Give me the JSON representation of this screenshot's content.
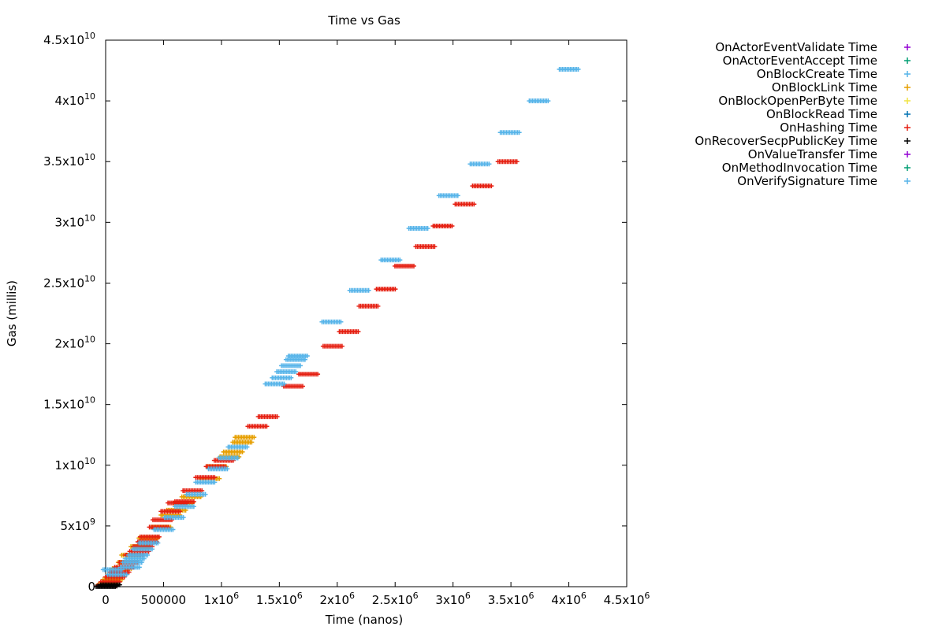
{
  "chart_data": {
    "type": "scatter",
    "title": "Time vs Gas",
    "xlabel": "Time (nanos)",
    "ylabel": "Gas (millis)",
    "xlim": [
      0,
      4500000
    ],
    "ylim": [
      0,
      45000000000
    ],
    "grid": false,
    "legend_position": "outside-right",
    "x_ticks": [
      {
        "value": 0,
        "label": "0"
      },
      {
        "value": 500000,
        "label": "500000"
      },
      {
        "value": 1000000,
        "mantissa": "1x10",
        "exp": "6"
      },
      {
        "value": 1500000,
        "mantissa": "1.5x10",
        "exp": "6"
      },
      {
        "value": 2000000,
        "mantissa": "2x10",
        "exp": "6"
      },
      {
        "value": 2500000,
        "mantissa": "2.5x10",
        "exp": "6"
      },
      {
        "value": 3000000,
        "mantissa": "3x10",
        "exp": "6"
      },
      {
        "value": 3500000,
        "mantissa": "3.5x10",
        "exp": "6"
      },
      {
        "value": 4000000,
        "mantissa": "4x10",
        "exp": "6"
      },
      {
        "value": 4500000,
        "mantissa": "4.5x10",
        "exp": "6"
      }
    ],
    "y_ticks": [
      {
        "value": 0,
        "label": "0"
      },
      {
        "value": 5000000000,
        "mantissa": "5x10",
        "exp": "9"
      },
      {
        "value": 10000000000,
        "mantissa": "1x10",
        "exp": "10"
      },
      {
        "value": 15000000000,
        "mantissa": "1.5x10",
        "exp": "10"
      },
      {
        "value": 20000000000,
        "mantissa": "2x10",
        "exp": "10"
      },
      {
        "value": 25000000000,
        "mantissa": "2.5x10",
        "exp": "10"
      },
      {
        "value": 30000000000,
        "mantissa": "3x10",
        "exp": "10"
      },
      {
        "value": 35000000000,
        "mantissa": "3.5x10",
        "exp": "10"
      },
      {
        "value": 40000000000,
        "mantissa": "4x10",
        "exp": "10"
      },
      {
        "value": 45000000000,
        "mantissa": "4.5x10",
        "exp": "10"
      }
    ],
    "series": [
      {
        "name": "OnActorEventValidate Time",
        "color": "#9400d3",
        "points": []
      },
      {
        "name": "OnActorEventAccept Time",
        "color": "#009e73",
        "points": []
      },
      {
        "name": "OnBlockCreate Time",
        "color": "#56b4e9",
        "points": []
      },
      {
        "name": "OnBlockLink Time",
        "color": "#e69f00",
        "points": [
          [
            20000,
            200000000
          ],
          [
            60000,
            600000000
          ],
          [
            100000,
            1000000000
          ],
          [
            140000,
            1500000000
          ],
          [
            190000,
            2000000000
          ],
          [
            220000,
            2600000000
          ],
          [
            300000,
            3300000000
          ],
          [
            370000,
            4000000000
          ],
          [
            480000,
            4900000000
          ],
          [
            560000,
            5900000000
          ],
          [
            610000,
            6300000000
          ],
          [
            670000,
            6900000000
          ],
          [
            740000,
            7400000000
          ],
          [
            900000,
            8900000000
          ],
          [
            960000,
            9900000000
          ],
          [
            1070000,
            10700000000
          ],
          [
            1100000,
            11100000000
          ],
          [
            1180000,
            11900000000
          ],
          [
            1200000,
            12300000000
          ]
        ]
      },
      {
        "name": "OnBlockOpenPerByte Time",
        "color": "#f0e442",
        "points": []
      },
      {
        "name": "OnBlockRead Time",
        "color": "#0072b2",
        "points": []
      },
      {
        "name": "OnHashing Time",
        "color": "#e51e10",
        "points": [
          [
            10000,
            100000000
          ],
          [
            40000,
            400000000
          ],
          [
            80000,
            800000000
          ],
          [
            120000,
            1200000000
          ],
          [
            160000,
            1600000000
          ],
          [
            200000,
            2000000000
          ],
          [
            250000,
            2600000000
          ],
          [
            290000,
            2900000000
          ],
          [
            320000,
            3300000000
          ],
          [
            360000,
            3700000000
          ],
          [
            380000,
            4100000000
          ],
          [
            460000,
            4900000000
          ],
          [
            490000,
            5500000000
          ],
          [
            560000,
            6200000000
          ],
          [
            620000,
            6900000000
          ],
          [
            680000,
            7000000000
          ],
          [
            750000,
            7900000000
          ],
          [
            860000,
            9000000000
          ],
          [
            950000,
            9900000000
          ],
          [
            1020000,
            10400000000
          ],
          [
            1310000,
            13200000000
          ],
          [
            1400000,
            14000000000
          ],
          [
            1620000,
            16500000000
          ],
          [
            1750000,
            17500000000
          ],
          [
            1960000,
            19800000000
          ],
          [
            2100000,
            21000000000
          ],
          [
            2270000,
            23100000000
          ],
          [
            2420000,
            24500000000
          ],
          [
            2580000,
            26400000000
          ],
          [
            2760000,
            28000000000
          ],
          [
            2910000,
            29700000000
          ],
          [
            3100000,
            31500000000
          ],
          [
            3250000,
            33000000000
          ],
          [
            3470000,
            35000000000
          ]
        ]
      },
      {
        "name": "OnRecoverSecpPublicKey Time",
        "color": "#000000",
        "points": [
          [
            0,
            0
          ],
          [
            15000,
            50000000
          ],
          [
            40000,
            150000000
          ]
        ]
      },
      {
        "name": "OnValueTransfer Time",
        "color": "#9400d3",
        "points": []
      },
      {
        "name": "OnMethodInvocation Time",
        "color": "#009e73",
        "points": []
      },
      {
        "name": "OnVerifySignature Time",
        "color": "#56b4e9",
        "points": [
          [
            60000,
            1400000000
          ],
          [
            100000,
            1000000000
          ],
          [
            210000,
            1600000000
          ],
          [
            230000,
            2000000000
          ],
          [
            250000,
            2300000000
          ],
          [
            280000,
            2600000000
          ],
          [
            320000,
            3100000000
          ],
          [
            370000,
            3600000000
          ],
          [
            500000,
            4700000000
          ],
          [
            590000,
            5700000000
          ],
          [
            680000,
            6600000000
          ],
          [
            780000,
            7600000000
          ],
          [
            860000,
            8600000000
          ],
          [
            970000,
            9700000000
          ],
          [
            1060000,
            10600000000
          ],
          [
            1140000,
            11500000000
          ],
          [
            1460000,
            16700000000
          ],
          [
            1520000,
            17200000000
          ],
          [
            1560000,
            17700000000
          ],
          [
            1600000,
            18200000000
          ],
          [
            1640000,
            18700000000
          ],
          [
            1660000,
            19000000000
          ],
          [
            1950000,
            21800000000
          ],
          [
            2190000,
            24400000000
          ],
          [
            2460000,
            26900000000
          ],
          [
            2700000,
            29500000000
          ],
          [
            2960000,
            32200000000
          ],
          [
            3230000,
            34800000000
          ],
          [
            3490000,
            37400000000
          ],
          [
            3740000,
            40000000000
          ],
          [
            4000000,
            42600000000
          ]
        ]
      }
    ]
  }
}
